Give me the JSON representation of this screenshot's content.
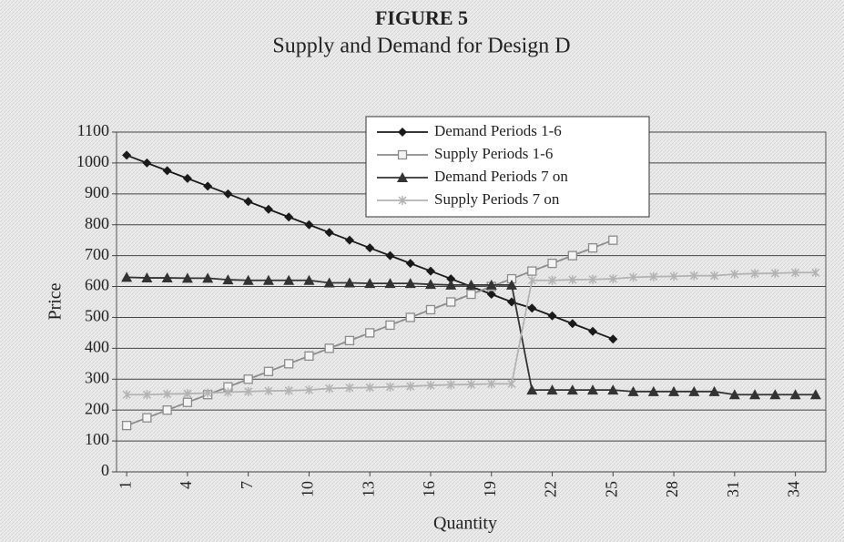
{
  "chart_data": {
    "type": "line",
    "title": "FIGURE 5",
    "subtitle": "Supply and Demand for Design D",
    "x_label": "Quantity",
    "y_label": "Price",
    "x": [
      1,
      2,
      3,
      4,
      5,
      6,
      7,
      8,
      9,
      10,
      11,
      12,
      13,
      14,
      15,
      16,
      17,
      18,
      19,
      20,
      21,
      22,
      23,
      24,
      25,
      26,
      27,
      28,
      29,
      30,
      31,
      32,
      33,
      34,
      35
    ],
    "xlim": [
      0.5,
      35.5
    ],
    "xticks": [
      1,
      4,
      7,
      10,
      13,
      16,
      19,
      22,
      25,
      28,
      31,
      34
    ],
    "ylim": [
      0,
      1100
    ],
    "yticks": [
      0,
      100,
      200,
      300,
      400,
      500,
      600,
      700,
      800,
      900,
      1000,
      1100
    ],
    "grid": true,
    "legend": "top",
    "series": [
      {
        "name": "Demand Periods 1-6",
        "color": "#1a1a1a",
        "marker": "diamond",
        "values": [
          1025,
          1000,
          975,
          950,
          925,
          900,
          875,
          850,
          825,
          800,
          775,
          750,
          725,
          700,
          675,
          650,
          625,
          600,
          575,
          550,
          530,
          505,
          480,
          455,
          430,
          null,
          null,
          null,
          null,
          null,
          null,
          null,
          null,
          null,
          null
        ]
      },
      {
        "name": "Supply Periods 1-6",
        "color": "#8c8c8c",
        "marker": "square",
        "values": [
          150,
          175,
          200,
          225,
          250,
          275,
          300,
          325,
          350,
          375,
          400,
          425,
          450,
          475,
          500,
          525,
          550,
          575,
          600,
          625,
          650,
          675,
          700,
          725,
          750,
          null,
          null,
          null,
          null,
          null,
          null,
          null,
          null,
          null,
          null
        ]
      },
      {
        "name": "Demand Periods 7 on",
        "color": "#333333",
        "marker": "triangle",
        "values": [
          630,
          628,
          628,
          627,
          627,
          622,
          620,
          620,
          620,
          620,
          612,
          612,
          610,
          610,
          610,
          607,
          605,
          605,
          605,
          605,
          265,
          265,
          265,
          265,
          265,
          260,
          260,
          260,
          260,
          260,
          250,
          250,
          250,
          250,
          250
        ]
      },
      {
        "name": "Supply Periods 7 on",
        "color": "#b3b3b3",
        "marker": "x",
        "values": [
          250,
          250,
          252,
          253,
          255,
          258,
          260,
          262,
          263,
          265,
          270,
          272,
          273,
          275,
          277,
          280,
          282,
          283,
          285,
          285,
          620,
          620,
          622,
          623,
          625,
          630,
          632,
          633,
          635,
          635,
          640,
          642,
          643,
          645,
          645
        ]
      }
    ]
  }
}
